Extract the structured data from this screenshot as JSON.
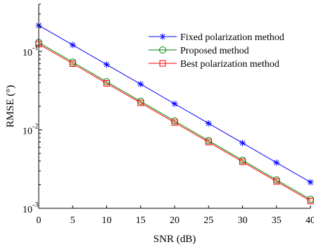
{
  "chart_data": {
    "type": "line",
    "xlabel": "SNR (dB)",
    "ylabel": "RMSE (°)",
    "x": [
      0,
      5,
      10,
      15,
      20,
      25,
      30,
      35,
      40
    ],
    "xlim": [
      0,
      40
    ],
    "ylim": [
      0.001,
      0.4
    ],
    "yscale": "log",
    "x_ticks": [
      "0",
      "5",
      "10",
      "15",
      "20",
      "25",
      "30",
      "35",
      "40"
    ],
    "y_ticks": [
      {
        "base": "10",
        "exp": "-1",
        "value": 0.1
      },
      {
        "base": "10",
        "exp": "-2",
        "value": 0.01
      },
      {
        "base": "10",
        "exp": "-3",
        "value": 0.001
      }
    ],
    "grid": false,
    "legend_position": "top-right",
    "series": [
      {
        "name": "Fixed polarization method",
        "color": "#0000ff",
        "marker": "asterisk",
        "values": [
          0.215,
          0.121,
          0.068,
          0.0383,
          0.0215,
          0.0121,
          0.0068,
          0.00382,
          0.00215
        ]
      },
      {
        "name": "Proposed method",
        "color": "#008000",
        "marker": "circle",
        "values": [
          0.13,
          0.0732,
          0.0411,
          0.0231,
          0.013,
          0.0073,
          0.0041,
          0.0023,
          0.0013
        ]
      },
      {
        "name": "Best polarization method",
        "color": "#ff0000",
        "marker": "square",
        "values": [
          0.124,
          0.0698,
          0.0392,
          0.0221,
          0.0124,
          0.00698,
          0.00392,
          0.0022,
          0.00124
        ]
      }
    ]
  }
}
